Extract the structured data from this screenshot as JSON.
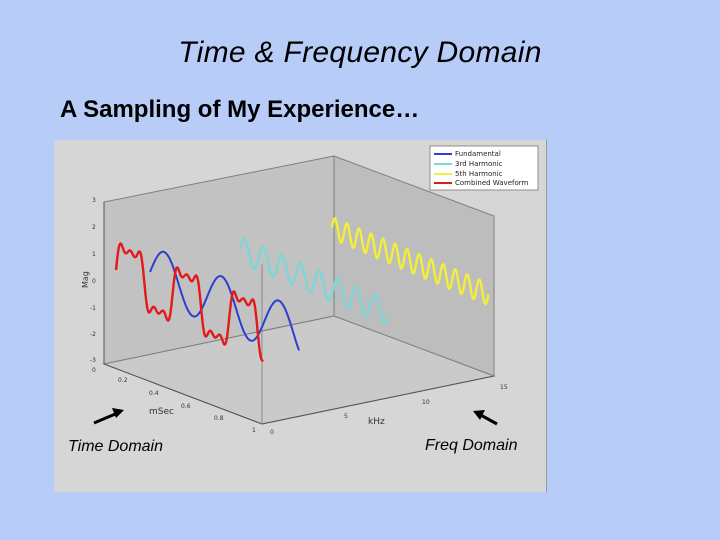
{
  "slide": {
    "title": "Time & Frequency Domain",
    "subtitle": "A Sampling of My Experience…"
  },
  "figure": {
    "legend": [
      "Fundamental",
      "3rd Harmonic",
      "5th Harmonic",
      "Combined Waveform"
    ],
    "series_colors": {
      "fundamental": "#2b3fd0",
      "third_harmonic": "#7fd6d6",
      "fifth_harmonic": "#f2ef3a",
      "combined": "#e21a1a"
    },
    "axes": {
      "z_label": "Mag",
      "z_ticks": [
        "3",
        "2",
        "1",
        "0",
        "-1",
        "-2",
        "-3"
      ],
      "x_label": "mSec",
      "x_ticks": [
        "0",
        "0.2",
        "0.4",
        "0.6",
        "0.8",
        "1"
      ],
      "y_label": "kHz",
      "y_ticks": [
        "0",
        "5",
        "10",
        "15"
      ]
    },
    "annotations": {
      "time": "Time Domain",
      "freq": "Freq Domain"
    }
  }
}
